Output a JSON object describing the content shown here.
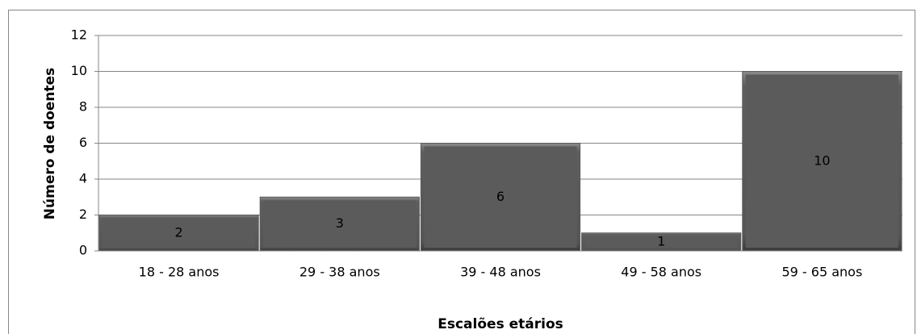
{
  "chart_data": {
    "type": "bar",
    "categories": [
      "18 - 28 anos",
      "29 - 38 anos",
      "39 - 48 anos",
      "49 - 58 anos",
      "59 - 65 anos"
    ],
    "values": [
      2,
      3,
      6,
      1,
      10
    ],
    "color": "#5b5b5b",
    "xlabel": "Escalões etários",
    "ylabel": "Número de doentes",
    "ylim": [
      0,
      12
    ],
    "yticks": [
      0,
      2,
      4,
      6,
      8,
      10,
      12
    ],
    "grid": true
  }
}
